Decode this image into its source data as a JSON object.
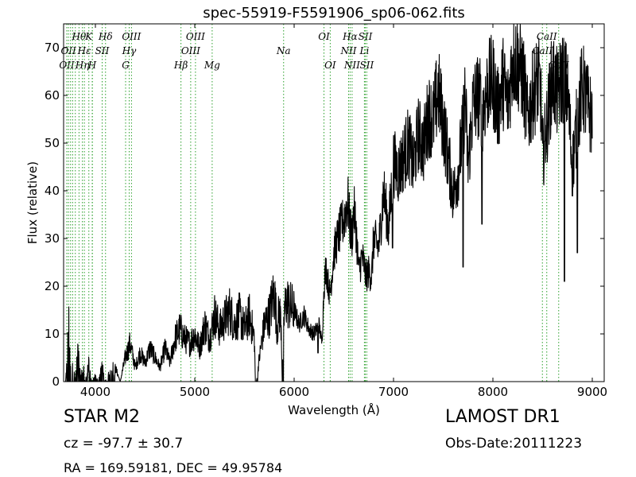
{
  "chart_data": {
    "type": "line",
    "title": "spec-55919-F5591906_sp06-062.fits",
    "xlabel": "Wavelength (Å)",
    "ylabel": "Flux (relative)",
    "xlim": [
      3680,
      9120
    ],
    "ylim": [
      0,
      75
    ],
    "xticks": [
      4000,
      5000,
      6000,
      7000,
      8000,
      9000
    ],
    "yticks": [
      0,
      10,
      20,
      30,
      40,
      50,
      60,
      70
    ],
    "grid": false,
    "line_color": "#000000",
    "marker_color": "#2ca02c",
    "spectrum": {
      "x": [
        3700,
        3740,
        3755,
        3760,
        3800,
        3830,
        3850,
        3870,
        3900,
        3930,
        3960,
        4000,
        4030,
        4060,
        4100,
        4150,
        4200,
        4250,
        4300,
        4350,
        4400,
        4450,
        4500,
        4550,
        4600,
        4650,
        4700,
        4750,
        4800,
        4850,
        4900,
        4950,
        5000,
        5050,
        5100,
        5150,
        5200,
        5250,
        5300,
        5350,
        5400,
        5450,
        5500,
        5550,
        5600,
        5610,
        5620,
        5650,
        5700,
        5750,
        5800,
        5830,
        5850,
        5870,
        5880,
        5900,
        5920,
        5950,
        6000,
        6050,
        6100,
        6150,
        6200,
        6250,
        6280,
        6300,
        6320,
        6340,
        6360,
        6400,
        6450,
        6500,
        6520,
        6540,
        6560,
        6580,
        6600,
        6620,
        6650,
        6680,
        6700,
        6720,
        6750,
        6780,
        6800,
        6850,
        6900,
        6950,
        7000,
        7050,
        7100,
        7150,
        7200,
        7250,
        7300,
        7350,
        7400,
        7450,
        7500,
        7550,
        7600,
        7650,
        7700,
        7720,
        7750,
        7800,
        7850,
        7900,
        7950,
        8000,
        8050,
        8100,
        8150,
        8200,
        8250,
        8300,
        8350,
        8400,
        8450,
        8480,
        8500,
        8550,
        8600,
        8650,
        8700,
        8750,
        8800,
        8850,
        8900,
        8950,
        9000
      ],
      "y": [
        0,
        11,
        0,
        6,
        0,
        8,
        0,
        3,
        0,
        4,
        0,
        1,
        0,
        3,
        0,
        2,
        3,
        0,
        5,
        8,
        3,
        6,
        4,
        7,
        5,
        3,
        7,
        4,
        9,
        11,
        9,
        8,
        10,
        7,
        12,
        9,
        14,
        11,
        13,
        15,
        12,
        14,
        11,
        14,
        9,
        0,
        0,
        5,
        12,
        14,
        19,
        11,
        15,
        12,
        0,
        14,
        17,
        16,
        15,
        12,
        14,
        11,
        10,
        12,
        8,
        20,
        24,
        21,
        18,
        27,
        31,
        34,
        36,
        38,
        33,
        30,
        36,
        33,
        23,
        26,
        25,
        22,
        23,
        22,
        30,
        28,
        40,
        32,
        46,
        44,
        47,
        50,
        45,
        52,
        49,
        56,
        55,
        61,
        54,
        47,
        39,
        44,
        53,
        60,
        45,
        58,
        60,
        57,
        62,
        63,
        57,
        63,
        58,
        68,
        67,
        64,
        55,
        60,
        63,
        61,
        47,
        55,
        64,
        60,
        64,
        61,
        45,
        55,
        62,
        58,
        55
      ],
      "dips": [
        {
          "x": 5630,
          "y": 0
        },
        {
          "x": 5890,
          "y": 0
        },
        {
          "x": 7700,
          "y": 24
        },
        {
          "x": 7890,
          "y": 33
        },
        {
          "x": 8720,
          "y": 21
        },
        {
          "x": 8850,
          "y": 27
        },
        {
          "x": 6990,
          "y": 28
        },
        {
          "x": 6240,
          "y": 6
        }
      ]
    },
    "line_markers": [
      {
        "x": 3712,
        "label": "OII",
        "row": 2
      },
      {
        "x": 3729,
        "label": "OII",
        "row": 1
      },
      {
        "x": 3750,
        "label": "",
        "row": 0
      },
      {
        "x": 3771,
        "label": "",
        "row": 0
      },
      {
        "x": 3798,
        "label": "",
        "row": 0
      },
      {
        "x": 3835,
        "label": "Hθ",
        "row": 0
      },
      {
        "x": 3869,
        "label": "Hη",
        "row": 2
      },
      {
        "x": 3889,
        "label": "Hε",
        "row": 1
      },
      {
        "x": 3934,
        "label": "K",
        "row": 0
      },
      {
        "x": 3968,
        "label": "H",
        "row": 2
      },
      {
        "x": 3970,
        "label": "",
        "row": 0
      },
      {
        "x": 4068,
        "label": "SII",
        "row": 1
      },
      {
        "x": 4102,
        "label": "Hδ",
        "row": 0
      },
      {
        "x": 4304,
        "label": "G",
        "row": 2
      },
      {
        "x": 4340,
        "label": "Hγ",
        "row": 1
      },
      {
        "x": 4363,
        "label": "OIII",
        "row": 0
      },
      {
        "x": 4861,
        "label": "Hβ",
        "row": 2
      },
      {
        "x": 4959,
        "label": "OIII",
        "row": 1
      },
      {
        "x": 5007,
        "label": "OIII",
        "row": 0
      },
      {
        "x": 5175,
        "label": "Mg",
        "row": 2
      },
      {
        "x": 5894,
        "label": "Na",
        "row": 1
      },
      {
        "x": 6300,
        "label": "OI",
        "row": 0
      },
      {
        "x": 6363,
        "label": "OI",
        "row": 2
      },
      {
        "x": 6548,
        "label": "NII",
        "row": 1
      },
      {
        "x": 6563,
        "label": "Hα",
        "row": 0
      },
      {
        "x": 6583,
        "label": "NII",
        "row": 2
      },
      {
        "x": 6707,
        "label": "Li",
        "row": 1
      },
      {
        "x": 6716,
        "label": "SII",
        "row": 0
      },
      {
        "x": 6731,
        "label": "SII",
        "row": 2
      },
      {
        "x": 8498,
        "label": "CaII",
        "row": 1
      },
      {
        "x": 8542,
        "label": "CaII",
        "row": 0
      },
      {
        "x": 8662,
        "label": "CaII",
        "row": 2
      }
    ]
  },
  "info": {
    "object_class": "STAR   M2",
    "survey": "LAMOST DR1",
    "redshift": "cz = -97.7 ± 30.7",
    "obs_date": "Obs-Date:20111223",
    "coordinates": "RA = 169.59181, DEC = 49.95784"
  }
}
